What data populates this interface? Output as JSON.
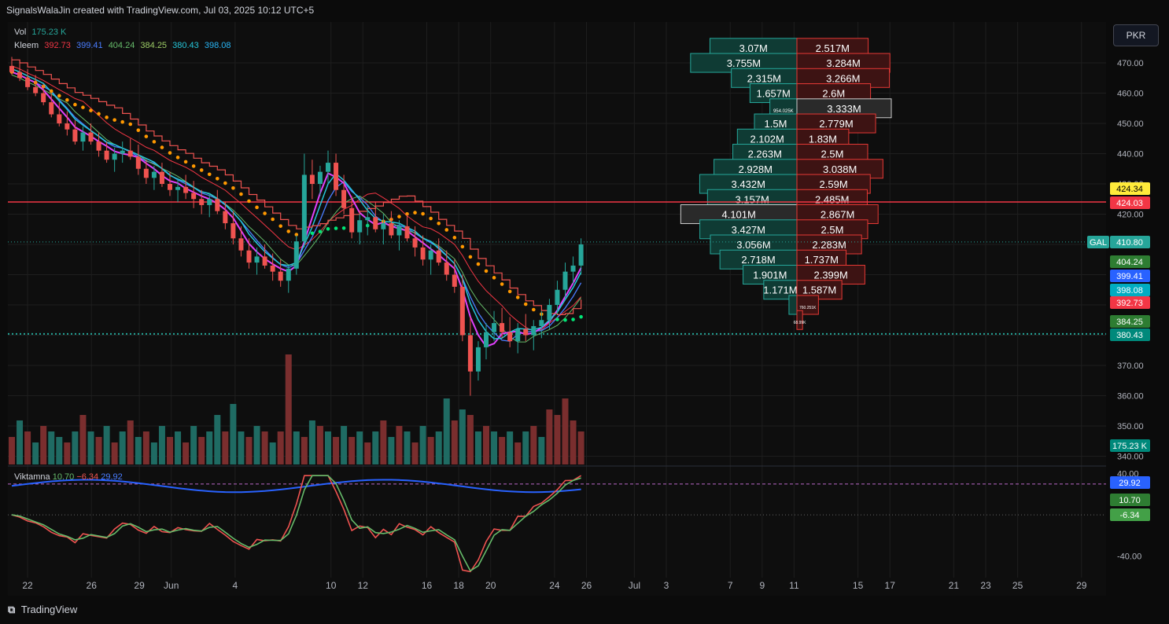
{
  "header": {
    "text": "SignalsWalaJin created with TradingView.com, Jul 03, 2025 10:12 UTC+5"
  },
  "legend": {
    "vol_label": "Vol",
    "vol_value": "175.23 K",
    "kleem_label": "Kleem",
    "kleem_values": [
      "392.73",
      "399.41",
      "404.24",
      "384.25",
      "380.43",
      "398.08"
    ],
    "kleem_colors": [
      "#f23645",
      "#4a7dff",
      "#66bb6a",
      "#9ccc65",
      "#26c6da",
      "#29b6f6"
    ]
  },
  "currency_button": "PKR",
  "oscillator_legend": {
    "name": "Viktamna",
    "values": [
      "10.70",
      "−6.34",
      "29.92"
    ]
  },
  "footer": {
    "brand": "TradingView",
    "icon": "tradingview-logo-icon"
  },
  "colors": {
    "bg": "#0b0b0b",
    "grid": "#1e1e1e",
    "up": "#26a69a",
    "down": "#ef5350",
    "vol_up": "#1f6b63",
    "vol_down": "#7a2e2e",
    "orange": "#ff9800",
    "hline": "#f23645",
    "dotted_green": "#26a69a"
  },
  "chart_data": {
    "type": "candlestick",
    "symbol_label": "GAL",
    "y_ticks": [
      "470.00",
      "460.00",
      "450.00",
      "440.00",
      "430.00",
      "420.00",
      "410.00",
      "400.00",
      "390.00",
      "380.00",
      "370.00",
      "360.00",
      "350.00",
      "340.00"
    ],
    "y_range": [
      337,
      483
    ],
    "x_ticks": [
      "22",
      "26",
      "29",
      "Jun",
      "4",
      "10",
      "12",
      "16",
      "18",
      "20",
      "24",
      "26",
      "Jul",
      "3",
      "7",
      "9",
      "11",
      "15",
      "17",
      "21",
      "23",
      "25",
      "29"
    ],
    "x_tick_positions": [
      0,
      4,
      7,
      9,
      13,
      19,
      21,
      25,
      27,
      29,
      33,
      35,
      38,
      40,
      44,
      46,
      48,
      52,
      54,
      58,
      60,
      62,
      66
    ],
    "price_badges": [
      {
        "text": "424.34",
        "bg": "#ffeb3b",
        "fg": "#000000",
        "value": 424.34
      },
      {
        "text": "424.03",
        "bg": "#f23645",
        "fg": "#ffffff",
        "value": 424.03
      },
      {
        "text": "410.80",
        "bg": "#26a69a",
        "fg": "#ffffff",
        "value": 410.8,
        "label": "GAL"
      },
      {
        "text": "404.24",
        "bg": "#2e7d32",
        "fg": "#ffffff",
        "value": 404.24
      },
      {
        "text": "399.41",
        "bg": "#2962ff",
        "fg": "#ffffff",
        "value": 399.41
      },
      {
        "text": "398.08",
        "bg": "#00acc1",
        "fg": "#ffffff",
        "value": 398.08
      },
      {
        "text": "392.73",
        "bg": "#f23645",
        "fg": "#ffffff",
        "value": 392.73
      },
      {
        "text": "384.25",
        "bg": "#2e7d32",
        "fg": "#ffffff",
        "value": 384.25
      },
      {
        "text": "380.43",
        "bg": "#00897b",
        "fg": "#ffffff",
        "value": 380.43
      },
      {
        "text": "175.23 K",
        "bg": "#00897b",
        "fg": "#ffffff",
        "value": null
      }
    ],
    "horizontal_line": 424.03,
    "current_price_line": 410.8,
    "support_line": 380.43,
    "volume_profile": [
      {
        "price": 475,
        "buy": "3.07M",
        "sell": "2.517M",
        "bv": 3.07,
        "sv": 2.517
      },
      {
        "price": 470,
        "buy": "3.755M",
        "sell": "3.284M",
        "bv": 3.755,
        "sv": 3.284
      },
      {
        "price": 465,
        "buy": "2.315M",
        "sell": "3.266M",
        "bv": 2.315,
        "sv": 3.266
      },
      {
        "price": 460,
        "buy": "1.657M",
        "sell": "2.6M",
        "bv": 1.657,
        "sv": 2.6
      },
      {
        "price": 455,
        "buy": "954.025K",
        "sell": "3.333M",
        "bv": 0.954,
        "sv": 3.333,
        "hl_sell": true
      },
      {
        "price": 450,
        "buy": "1.5M",
        "sell": "2.779M",
        "bv": 1.5,
        "sv": 2.779
      },
      {
        "price": 445,
        "buy": "2.102M",
        "sell": "1.83M",
        "bv": 2.102,
        "sv": 1.83
      },
      {
        "price": 440,
        "buy": "2.263M",
        "sell": "2.5M",
        "bv": 2.263,
        "sv": 2.5
      },
      {
        "price": 435,
        "buy": "2.928M",
        "sell": "3.038M",
        "bv": 2.928,
        "sv": 3.038
      },
      {
        "price": 430,
        "buy": "3.432M",
        "sell": "2.59M",
        "bv": 3.432,
        "sv": 2.59
      },
      {
        "price": 425,
        "buy": "3.157M",
        "sell": "2.485M",
        "bv": 3.157,
        "sv": 2.485
      },
      {
        "price": 420,
        "buy": "4.101M",
        "sell": "2.867M",
        "bv": 4.101,
        "sv": 2.867,
        "hl_buy": true
      },
      {
        "price": 415,
        "buy": "3.427M",
        "sell": "2.5M",
        "bv": 3.427,
        "sv": 2.5
      },
      {
        "price": 410,
        "buy": "3.056M",
        "sell": "2.283M",
        "bv": 3.056,
        "sv": 2.283
      },
      {
        "price": 405,
        "buy": "2.718M",
        "sell": "1.737M",
        "bv": 2.718,
        "sv": 1.737
      },
      {
        "price": 400,
        "buy": "1.901M",
        "sell": "2.399M",
        "bv": 1.901,
        "sv": 2.399
      },
      {
        "price": 395,
        "buy": "1.171M",
        "sell": "1.587M",
        "bv": 1.171,
        "sv": 1.587
      },
      {
        "price": 390,
        "buy": "",
        "sell": "760.251K",
        "bv": 0.28,
        "sv": 0.76
      },
      {
        "price": 385,
        "buy": "",
        "sell": "68.99K",
        "bv": 0.0,
        "sv": 0.2
      }
    ],
    "candles": [
      [
        469,
        472,
        466,
        467
      ],
      [
        467,
        470,
        464,
        465
      ],
      [
        465,
        468,
        461,
        462
      ],
      [
        462,
        466,
        459,
        460
      ],
      [
        460,
        463,
        456,
        457
      ],
      [
        457,
        460,
        452,
        453
      ],
      [
        453,
        457,
        449,
        450
      ],
      [
        450,
        454,
        446,
        448
      ],
      [
        448,
        451,
        443,
        444
      ],
      [
        444,
        449,
        441,
        447
      ],
      [
        447,
        450,
        443,
        444
      ],
      [
        444,
        447,
        439,
        441
      ],
      [
        441,
        444,
        437,
        438
      ],
      [
        438,
        442,
        434,
        440
      ],
      [
        440,
        444,
        437,
        441
      ],
      [
        441,
        445,
        438,
        439
      ],
      [
        439,
        443,
        433,
        435
      ],
      [
        435,
        438,
        430,
        432
      ],
      [
        432,
        436,
        428,
        434
      ],
      [
        434,
        437,
        429,
        430
      ],
      [
        430,
        434,
        426,
        428
      ],
      [
        428,
        432,
        424,
        429
      ],
      [
        429,
        433,
        425,
        427
      ],
      [
        427,
        431,
        422,
        425
      ],
      [
        425,
        428,
        420,
        423
      ],
      [
        423,
        427,
        419,
        425
      ],
      [
        425,
        428,
        420,
        421
      ],
      [
        421,
        424,
        415,
        417
      ],
      [
        417,
        421,
        410,
        412
      ],
      [
        412,
        416,
        406,
        408
      ],
      [
        408,
        412,
        402,
        404
      ],
      [
        404,
        409,
        400,
        406
      ],
      [
        406,
        410,
        402,
        403
      ],
      [
        403,
        407,
        398,
        401
      ],
      [
        401,
        405,
        396,
        398
      ],
      [
        398,
        403,
        394,
        402
      ],
      [
        402,
        413,
        400,
        411
      ],
      [
        411,
        440,
        409,
        433
      ],
      [
        433,
        438,
        425,
        430
      ],
      [
        430,
        436,
        426,
        434
      ],
      [
        434,
        441,
        430,
        437
      ],
      [
        437,
        440,
        426,
        428
      ],
      [
        428,
        433,
        420,
        422
      ],
      [
        422,
        426,
        412,
        414
      ],
      [
        414,
        420,
        410,
        418
      ],
      [
        418,
        423,
        413,
        419
      ],
      [
        419,
        424,
        414,
        415
      ],
      [
        415,
        420,
        410,
        417
      ],
      [
        417,
        421,
        412,
        413
      ],
      [
        413,
        418,
        408,
        416
      ],
      [
        416,
        420,
        411,
        412
      ],
      [
        412,
        416,
        406,
        409
      ],
      [
        409,
        413,
        403,
        405
      ],
      [
        405,
        410,
        400,
        408
      ],
      [
        408,
        412,
        403,
        404
      ],
      [
        404,
        408,
        398,
        400
      ],
      [
        400,
        405,
        394,
        396
      ],
      [
        396,
        400,
        378,
        380
      ],
      [
        380,
        386,
        360,
        368
      ],
      [
        368,
        378,
        365,
        376
      ],
      [
        376,
        384,
        372,
        381
      ],
      [
        381,
        388,
        378,
        384
      ],
      [
        384,
        389,
        379,
        381
      ],
      [
        381,
        386,
        376,
        378
      ],
      [
        378,
        384,
        374,
        382
      ],
      [
        382,
        387,
        378,
        380
      ],
      [
        380,
        385,
        375,
        383
      ],
      [
        383,
        388,
        379,
        385
      ],
      [
        385,
        392,
        382,
        390
      ],
      [
        390,
        398,
        387,
        395
      ],
      [
        395,
        404,
        392,
        401
      ],
      [
        401,
        406,
        397,
        403
      ],
      [
        403,
        412,
        400,
        410
      ]
    ],
    "volumes": [
      [
        0.25,
        0
      ],
      [
        0.4,
        1
      ],
      [
        0.3,
        0
      ],
      [
        0.2,
        1
      ],
      [
        0.35,
        0
      ],
      [
        0.3,
        1
      ],
      [
        0.25,
        1
      ],
      [
        0.2,
        0
      ],
      [
        0.3,
        1
      ],
      [
        0.45,
        0
      ],
      [
        0.3,
        1
      ],
      [
        0.25,
        0
      ],
      [
        0.35,
        1
      ],
      [
        0.2,
        0
      ],
      [
        0.3,
        1
      ],
      [
        0.4,
        0
      ],
      [
        0.25,
        1
      ],
      [
        0.3,
        0
      ],
      [
        0.2,
        1
      ],
      [
        0.35,
        1
      ],
      [
        0.25,
        0
      ],
      [
        0.3,
        1
      ],
      [
        0.2,
        0
      ],
      [
        0.35,
        1
      ],
      [
        0.25,
        0
      ],
      [
        0.3,
        1
      ],
      [
        0.45,
        1
      ],
      [
        0.3,
        0
      ],
      [
        0.55,
        1
      ],
      [
        0.3,
        1
      ],
      [
        0.25,
        0
      ],
      [
        0.35,
        1
      ],
      [
        0.3,
        0
      ],
      [
        0.2,
        1
      ],
      [
        0.3,
        0
      ],
      [
        1.0,
        0
      ],
      [
        0.3,
        1
      ],
      [
        0.25,
        0
      ],
      [
        0.4,
        1
      ],
      [
        0.35,
        0
      ],
      [
        0.3,
        1
      ],
      [
        0.25,
        0
      ],
      [
        0.35,
        1
      ],
      [
        0.25,
        0
      ],
      [
        0.3,
        1
      ],
      [
        0.2,
        0
      ],
      [
        0.3,
        1
      ],
      [
        0.4,
        0
      ],
      [
        0.25,
        1
      ],
      [
        0.35,
        0
      ],
      [
        0.3,
        1
      ],
      [
        0.2,
        0
      ],
      [
        0.35,
        1
      ],
      [
        0.25,
        0
      ],
      [
        0.3,
        1
      ],
      [
        0.6,
        1
      ],
      [
        0.4,
        0
      ],
      [
        0.5,
        1
      ],
      [
        0.45,
        0
      ],
      [
        0.3,
        1
      ],
      [
        0.35,
        0
      ],
      [
        0.3,
        1
      ],
      [
        0.25,
        0
      ],
      [
        0.3,
        1
      ],
      [
        0.2,
        0
      ],
      [
        0.3,
        1
      ],
      [
        0.35,
        0
      ],
      [
        0.25,
        1
      ],
      [
        0.5,
        0
      ],
      [
        0.45,
        0
      ],
      [
        0.6,
        0
      ],
      [
        0.4,
        0
      ],
      [
        0.3,
        0
      ]
    ],
    "oscillator": {
      "y_ticks": [
        "40.00",
        "-40.00"
      ],
      "y_range": [
        -60,
        45
      ],
      "badges": [
        {
          "text": "29.92",
          "bg": "#2962ff",
          "value": 29.92
        },
        {
          "text": "10.70",
          "bg": "#2e7d32",
          "value": 10.7
        },
        {
          "text": "-6.34",
          "bg": "#43a047",
          "value": -6.34
        }
      ]
    }
  }
}
